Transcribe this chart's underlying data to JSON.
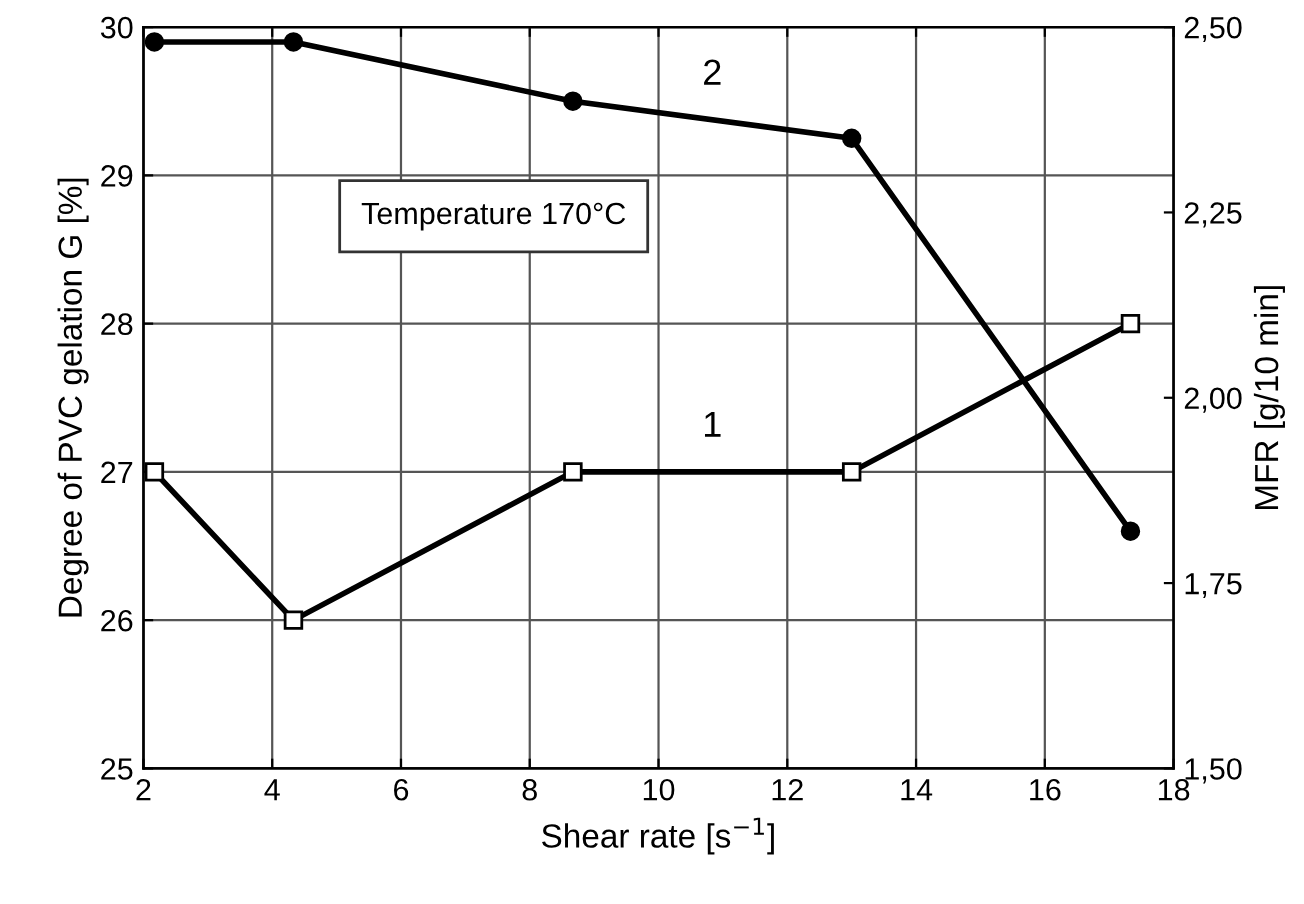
{
  "chart_data": {
    "type": "line",
    "xlabel": "Shear rate [s$^{−1}$]",
    "ylabel": "Degree of PVC gelation G [%]",
    "y2label": "MFR [g/10 min]",
    "x": [
      2.17,
      4.33,
      8.67,
      13.0,
      17.33
    ],
    "series": [
      {
        "name": "1",
        "color": "#000000",
        "values": [
          27,
          26,
          27,
          27,
          28
        ],
        "marker": "square"
      },
      {
        "name": "2",
        "color": "#000000",
        "values": [
          2.48,
          2.48,
          2.4,
          2.35,
          1.82
        ],
        "marker": "circle",
        "axis": "y2"
      }
    ],
    "xlim": [
      2,
      18
    ],
    "xticks": [
      2,
      4,
      6,
      8,
      10,
      12,
      14,
      16,
      18
    ],
    "ylim": [
      25,
      30
    ],
    "yticks": [
      25,
      26,
      27,
      28,
      29,
      30
    ],
    "y2lim": [
      1.5,
      2.5
    ],
    "y2ticks": [
      {
        "value": 1.5,
        "label": "1,50"
      },
      {
        "value": 1.75,
        "label": "1,75"
      },
      {
        "value": 2.0,
        "label": "2,00"
      },
      {
        "value": 2.25,
        "label": "2,25"
      },
      {
        "value": 2.5,
        "label": "2,50"
      }
    ],
    "grid": true,
    "legend": false,
    "annotations": [
      "Temperature 170°C"
    ]
  }
}
